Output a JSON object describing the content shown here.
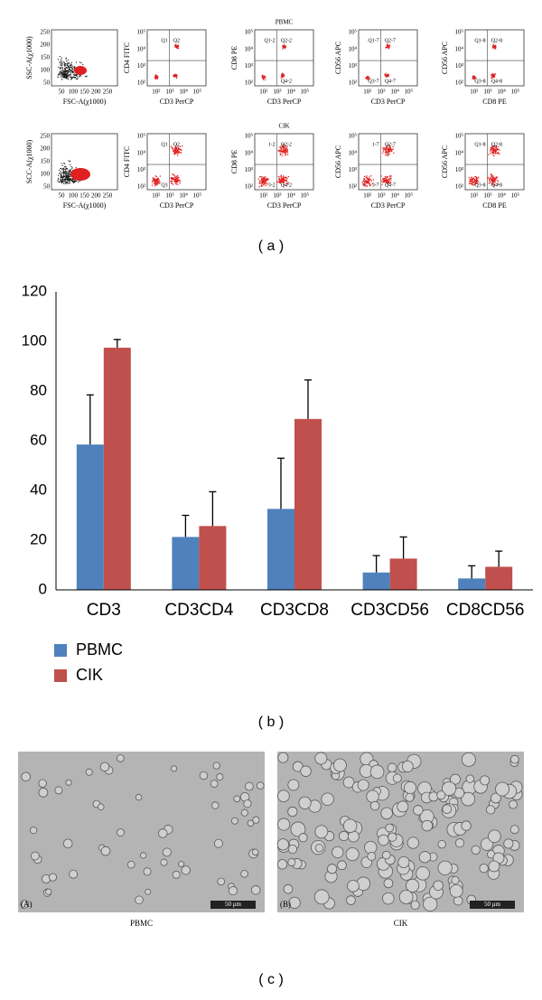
{
  "panel_a": {
    "caption": "( a )",
    "rows": [
      {
        "group": "PBMC",
        "plots": [
          {
            "y_label": "SSC-A(χ1000)",
            "x_label": "FSC-A(χ1000)",
            "yticks": [
              "250",
              "200",
              "150",
              "100",
              "50"
            ],
            "xticks": [
              "50",
              "100",
              "150",
              "200",
              "250"
            ]
          },
          {
            "y_label": "CD4 FITC",
            "x_label": "CD3 PerCP",
            "yticks": [
              "10⁵",
              "10⁴",
              "10³",
              "10²"
            ],
            "xticks": [
              "10²",
              "10³",
              "10⁴",
              "10⁵"
            ],
            "quadrants": {
              "tl": "Q1",
              "tr": "Q2"
            }
          },
          {
            "y_label": "CD8 PE",
            "x_label": "CD3 PerCP",
            "yticks": [
              "10⁵",
              "10⁴",
              "10³",
              "10²"
            ],
            "xticks": [
              "10²",
              "10³",
              "10⁴",
              "10⁵"
            ],
            "quadrants": {
              "tl": "Q1-2",
              "tr": "Q2-2",
              "br": "Q4-2"
            }
          },
          {
            "y_label": "CD56 APC",
            "x_label": "CD3 PerCP",
            "yticks": [
              "10⁵",
              "10⁴",
              "10³",
              "10²"
            ],
            "xticks": [
              "10²",
              "10³",
              "10⁴",
              "10⁵"
            ],
            "quadrants": {
              "tl": "Q1-7",
              "tr": "Q2-7",
              "bl": "Q3-7",
              "br": "Q4-7"
            }
          },
          {
            "y_label": "CD56 APC",
            "x_label": "CD8 PE",
            "yticks": [
              "10⁵",
              "10⁴",
              "10³",
              "10²"
            ],
            "xticks": [
              "10²",
              "10³",
              "10⁴",
              "10⁵"
            ],
            "quadrants": {
              "tl": "Q1-8",
              "tr": "Q2-8",
              "bl": "Q3-8",
              "br": "Q4-8"
            }
          }
        ]
      },
      {
        "group": "CIK",
        "plots": [
          {
            "y_label": "SCC-A(χ1000)",
            "x_label": "FSC-A(χ1000)",
            "yticks": [
              "250",
              "200",
              "150",
              "100",
              "50"
            ],
            "xticks": [
              "50",
              "100",
              "150",
              "200",
              "250"
            ]
          },
          {
            "y_label": "CD4 FITC",
            "x_label": "CD3 PerCP",
            "yticks": [
              "10⁵",
              "10⁴",
              "10³",
              "10²"
            ],
            "xticks": [
              "10²",
              "10³",
              "10⁴",
              "10⁵"
            ],
            "quadrants": {
              "tl": "Q1",
              "tr": "Q2",
              "bl": "Q3"
            }
          },
          {
            "y_label": "CD8 PE",
            "x_label": "CD3 PerCP",
            "yticks": [
              "10⁵",
              "10⁴",
              "10³",
              "10²"
            ],
            "xticks": [
              "10²",
              "10³",
              "10⁴",
              "10⁵"
            ],
            "quadrants": {
              "tl": "1-2",
              "tr": "Q2-2",
              "bl": "3-2",
              "br": "Q4-2"
            }
          },
          {
            "y_label": "CD56 APC",
            "x_label": "CD3 PerCP",
            "yticks": [
              "10⁵",
              "10⁴",
              "10³",
              "10²"
            ],
            "xticks": [
              "10²",
              "10³",
              "10⁴",
              "10⁵"
            ],
            "quadrants": {
              "tl": "1-7",
              "tr": "Q2-7",
              "bl": "3-7",
              "br": "Q4-7"
            }
          },
          {
            "y_label": "CD56 APC",
            "x_label": "CD8 PE",
            "yticks": [
              "10⁵",
              "10⁴",
              "10³",
              "10²"
            ],
            "xticks": [
              "10²",
              "10³",
              "10⁴",
              "10⁵"
            ],
            "quadrants": {
              "tl": "Q1-8",
              "tr": "Q2-8",
              "bl": "Q3-8",
              "br": "Q4-8"
            }
          }
        ]
      }
    ]
  },
  "chart_data": {
    "type": "bar",
    "caption": "( b )",
    "categories": [
      "CD3",
      "CD3CD4",
      "CD3CD8",
      "CD3CD56",
      "CD8CD56"
    ],
    "series": [
      {
        "name": "PBMC",
        "color": "#4f81bd",
        "values": [
          58.5,
          21.3,
          32.6,
          7.0,
          4.6
        ],
        "errors": [
          20.0,
          8.7,
          20.4,
          6.8,
          5.1
        ]
      },
      {
        "name": "CIK",
        "color": "#c0504d",
        "values": [
          97.5,
          25.7,
          68.8,
          12.6,
          9.3
        ],
        "errors": [
          3.3,
          13.8,
          15.7,
          8.7,
          6.3
        ]
      }
    ],
    "ylim": [
      0,
      120
    ],
    "yticks": [
      0,
      20,
      40,
      60,
      80,
      100,
      120
    ],
    "grid": false,
    "legend": "bottom-left"
  },
  "panel_c": {
    "caption": "( c )",
    "images": [
      {
        "tag": "(A)",
        "scale": "50 μm",
        "label": "PBMC"
      },
      {
        "tag": "(B)",
        "scale": "50 μm",
        "label": "CIK"
      }
    ]
  }
}
